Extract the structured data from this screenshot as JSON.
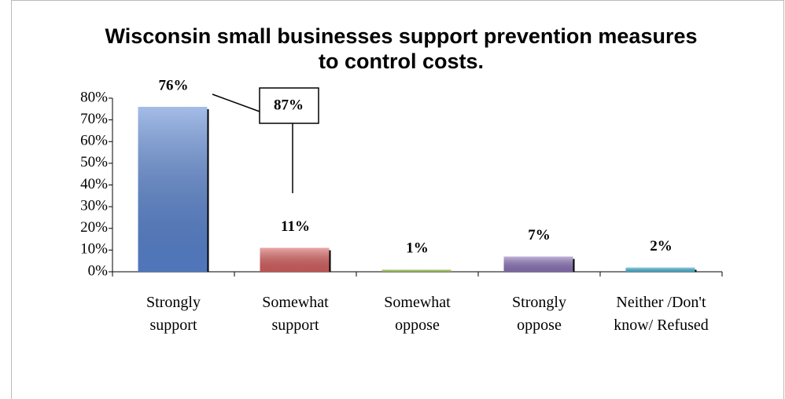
{
  "chart_data": {
    "type": "bar",
    "title": "Wisconsin small businesses support prevention measures to control costs.",
    "categories": [
      "Strongly support",
      "Somewhat support",
      "Somewhat oppose",
      "Strongly oppose",
      "Neither /Don't know/ Refused"
    ],
    "values": [
      76,
      11,
      1,
      7,
      2
    ],
    "value_labels": [
      "76%",
      "11%",
      "1%",
      "7%",
      "2%"
    ],
    "colors": [
      "#5a86d4",
      "#d96060",
      "#a8cf5c",
      "#8c74b8",
      "#4fb8d8"
    ],
    "ylim": [
      0,
      80
    ],
    "yticks": [
      {
        "value": 0,
        "label": "0%"
      },
      {
        "value": 10,
        "label": "10%"
      },
      {
        "value": 20,
        "label": "20%"
      },
      {
        "value": 30,
        "label": "30%"
      },
      {
        "value": 40,
        "label": "40%"
      },
      {
        "value": 50,
        "label": "50%"
      },
      {
        "value": 60,
        "label": "60%"
      },
      {
        "value": 70,
        "label": "70%"
      },
      {
        "value": 80,
        "label": "80%"
      }
    ],
    "annotation": "87%"
  }
}
